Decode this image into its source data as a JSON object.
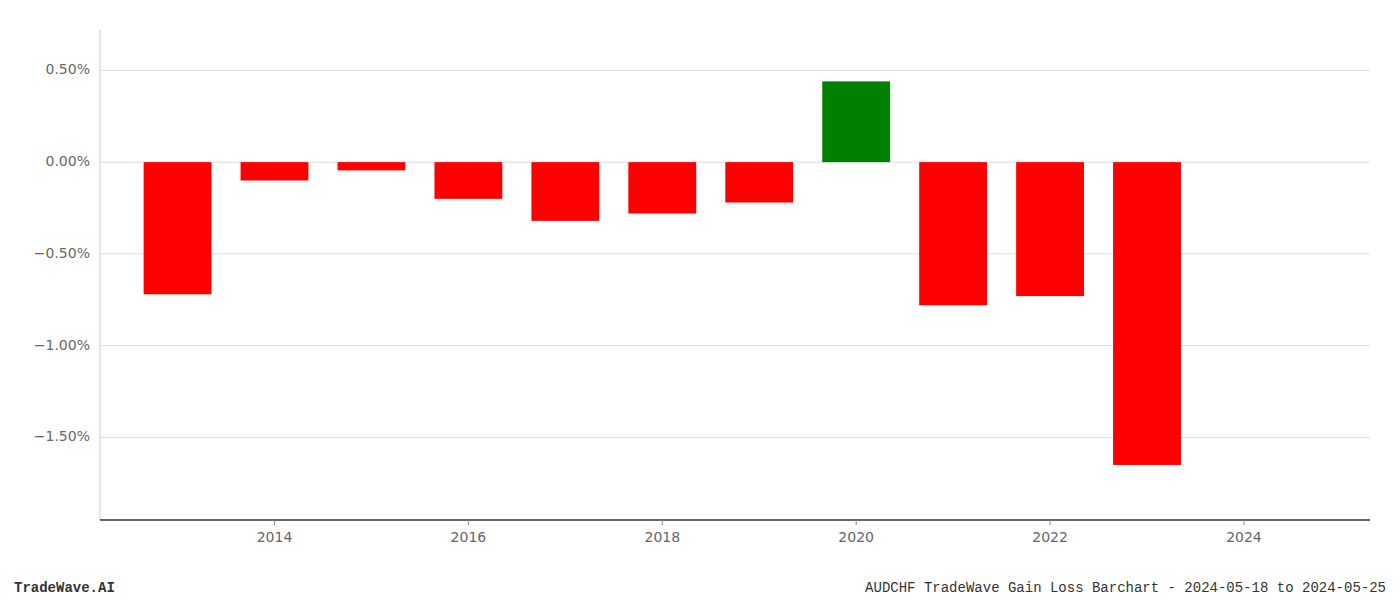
{
  "chart_data": {
    "type": "bar",
    "x": [
      2013,
      2014,
      2015,
      2016,
      2017,
      2018,
      2019,
      2020,
      2021,
      2022,
      2023
    ],
    "values": [
      -0.0072,
      -0.001,
      -0.00045,
      -0.002,
      -0.0032,
      -0.0028,
      -0.0022,
      0.0044,
      -0.0078,
      -0.0073,
      -0.0165
    ],
    "colors": [
      "#FF0000",
      "#FF0000",
      "#FF0000",
      "#FF0000",
      "#FF0000",
      "#FF0000",
      "#FF0000",
      "#008000",
      "#FF0000",
      "#FF0000",
      "#FF0000"
    ],
    "xlim": [
      2012.2,
      2025.3
    ],
    "xticks": [
      2014,
      2016,
      2018,
      2020,
      2022,
      2024
    ],
    "ylim": [
      -0.0195,
      0.0072
    ],
    "yticks": [
      {
        "value": 0.005,
        "label": "0.50%"
      },
      {
        "value": 0.0,
        "label": "0.00%"
      },
      {
        "value": -0.005,
        "label": "−0.50%"
      },
      {
        "value": -0.01,
        "label": "−1.00%"
      },
      {
        "value": -0.015,
        "label": "−1.50%"
      }
    ],
    "grid": true,
    "annotations": [
      "TradeWave.AI",
      "AUDCHF TradeWave Gain Loss Barchart - 2024-05-18 to 2024-05-25"
    ]
  }
}
